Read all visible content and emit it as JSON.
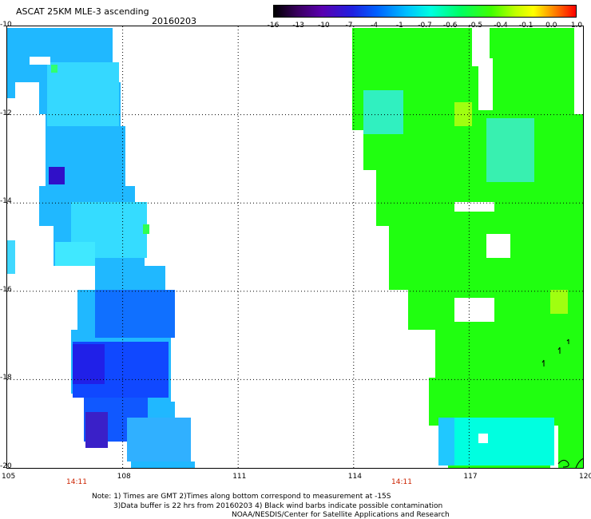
{
  "header": {
    "title": "ASCAT 25KM MLE-3 ascending",
    "date": "20160203"
  },
  "colorbar": {
    "ticks": [
      "-16",
      "-13",
      "-10",
      "-7",
      "-4",
      "-1",
      "-0.7",
      "-0.6",
      "-0.5",
      "-0.4",
      "-0.1",
      "0.0",
      "1.0"
    ]
  },
  "axes": {
    "y_labels": [
      "-10",
      "-12",
      "-14",
      "-16",
      "-18",
      "-20"
    ],
    "x_labels": [
      "105",
      "108",
      "111",
      "114",
      "117",
      "120"
    ]
  },
  "times": [
    "14:11",
    "14:11"
  ],
  "notes": [
    "Note: 1) Times are GMT 2)Times along bottom correspond to measurement at -15S",
    "3)Data buffer is 22 hrs from 20160203 4) Black wind barbs indicate possible contamination",
    "NOAA/NESDIS/Center for Satellite Applications and Research"
  ],
  "colors": {
    "blue": "#1040ff",
    "light_blue": "#20b8ff",
    "cyan": "#00ffe0",
    "green": "#20ff10",
    "purple": "#3a20c8"
  }
}
